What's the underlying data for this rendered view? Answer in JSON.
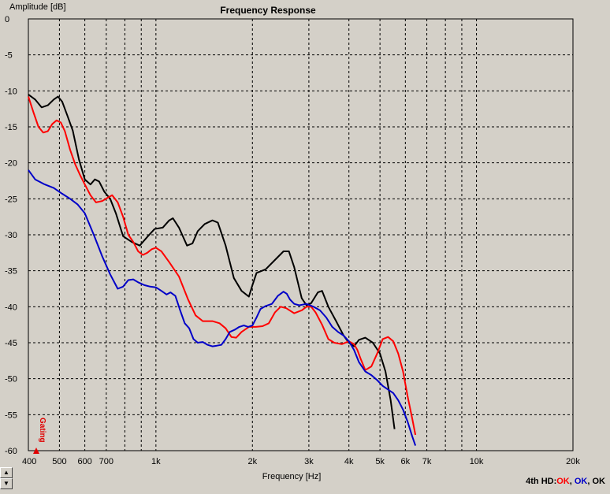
{
  "chart_data": {
    "type": "line",
    "title": "Frequency Response",
    "xlabel": "Frequency [Hz]",
    "ylabel": "Amplitude [dB]",
    "xscale": "log",
    "xlim": [
      400,
      20000
    ],
    "ylim": [
      -60,
      0
    ],
    "grid": true,
    "gating_label": "Gating",
    "xticks": [
      {
        "value": 400,
        "label": "400"
      },
      {
        "value": 500,
        "label": "500"
      },
      {
        "value": 600,
        "label": "600"
      },
      {
        "value": 700,
        "label": "700"
      },
      {
        "value": 1000,
        "label": "1k"
      },
      {
        "value": 2000,
        "label": "2k"
      },
      {
        "value": 3000,
        "label": "3k"
      },
      {
        "value": 4000,
        "label": "4k"
      },
      {
        "value": 5000,
        "label": "5k"
      },
      {
        "value": 6000,
        "label": "6k"
      },
      {
        "value": 7000,
        "label": "7k"
      },
      {
        "value": 10000,
        "label": "10k"
      },
      {
        "value": 20000,
        "label": "20k"
      }
    ],
    "xminor": [
      800,
      900,
      8000,
      9000
    ],
    "yticks": [
      0,
      -5,
      -10,
      -15,
      -20,
      -25,
      -30,
      -35,
      -40,
      -45,
      -50,
      -55,
      -60
    ],
    "series": [
      {
        "color": "#000000",
        "points": [
          [
            400,
            -10.5
          ],
          [
            420,
            -11.2
          ],
          [
            440,
            -12.3
          ],
          [
            460,
            -12.0
          ],
          [
            480,
            -11.2
          ],
          [
            495,
            -10.8
          ],
          [
            510,
            -11.5
          ],
          [
            530,
            -13.5
          ],
          [
            550,
            -15.5
          ],
          [
            575,
            -19.5
          ],
          [
            600,
            -22.3
          ],
          [
            625,
            -23.0
          ],
          [
            645,
            -22.3
          ],
          [
            665,
            -22.6
          ],
          [
            690,
            -24.0
          ],
          [
            720,
            -25.0
          ],
          [
            750,
            -27.0
          ],
          [
            790,
            -30.2
          ],
          [
            840,
            -31.0
          ],
          [
            890,
            -31.5
          ],
          [
            940,
            -30.3
          ],
          [
            990,
            -29.2
          ],
          [
            1050,
            -29.0
          ],
          [
            1100,
            -28.0
          ],
          [
            1130,
            -27.7
          ],
          [
            1180,
            -29.0
          ],
          [
            1250,
            -31.5
          ],
          [
            1300,
            -31.2
          ],
          [
            1350,
            -29.5
          ],
          [
            1420,
            -28.5
          ],
          [
            1500,
            -28.0
          ],
          [
            1560,
            -28.3
          ],
          [
            1650,
            -31.5
          ],
          [
            1750,
            -36.0
          ],
          [
            1850,
            -37.8
          ],
          [
            1950,
            -38.6
          ],
          [
            2000,
            -37.0
          ],
          [
            2060,
            -35.3
          ],
          [
            2200,
            -34.8
          ],
          [
            2350,
            -33.5
          ],
          [
            2500,
            -32.3
          ],
          [
            2600,
            -32.3
          ],
          [
            2700,
            -34.5
          ],
          [
            2850,
            -38.8
          ],
          [
            2950,
            -39.8
          ],
          [
            3050,
            -39.5
          ],
          [
            3200,
            -38.0
          ],
          [
            3300,
            -37.8
          ],
          [
            3450,
            -40.0
          ],
          [
            3650,
            -42.0
          ],
          [
            3850,
            -44.0
          ],
          [
            4000,
            -45.0
          ],
          [
            4150,
            -45.5
          ],
          [
            4300,
            -44.6
          ],
          [
            4500,
            -44.3
          ],
          [
            4750,
            -45.0
          ],
          [
            5000,
            -46.5
          ],
          [
            5200,
            -49.0
          ],
          [
            5400,
            -53.0
          ],
          [
            5550,
            -57.0
          ]
        ]
      },
      {
        "color": "#ff0000",
        "points": [
          [
            400,
            -10.8
          ],
          [
            415,
            -13.0
          ],
          [
            430,
            -15.0
          ],
          [
            445,
            -15.8
          ],
          [
            460,
            -15.6
          ],
          [
            475,
            -14.6
          ],
          [
            490,
            -14.1
          ],
          [
            505,
            -14.4
          ],
          [
            520,
            -15.6
          ],
          [
            540,
            -18.2
          ],
          [
            560,
            -20.2
          ],
          [
            580,
            -21.7
          ],
          [
            600,
            -23.0
          ],
          [
            625,
            -24.5
          ],
          [
            650,
            -25.5
          ],
          [
            680,
            -25.3
          ],
          [
            710,
            -24.8
          ],
          [
            730,
            -24.5
          ],
          [
            760,
            -25.5
          ],
          [
            790,
            -27.5
          ],
          [
            820,
            -30.0
          ],
          [
            850,
            -31.0
          ],
          [
            880,
            -32.3
          ],
          [
            910,
            -32.8
          ],
          [
            940,
            -32.5
          ],
          [
            970,
            -32.0
          ],
          [
            1000,
            -31.8
          ],
          [
            1040,
            -32.3
          ],
          [
            1100,
            -33.8
          ],
          [
            1180,
            -35.8
          ],
          [
            1260,
            -39.0
          ],
          [
            1330,
            -41.2
          ],
          [
            1400,
            -42.0
          ],
          [
            1500,
            -42.0
          ],
          [
            1580,
            -42.3
          ],
          [
            1650,
            -43.0
          ],
          [
            1720,
            -44.2
          ],
          [
            1780,
            -44.3
          ],
          [
            1850,
            -43.5
          ],
          [
            1950,
            -42.8
          ],
          [
            2050,
            -42.8
          ],
          [
            2150,
            -42.7
          ],
          [
            2250,
            -42.3
          ],
          [
            2350,
            -40.8
          ],
          [
            2450,
            -40.0
          ],
          [
            2550,
            -40.2
          ],
          [
            2700,
            -40.9
          ],
          [
            2850,
            -40.5
          ],
          [
            2950,
            -40.0
          ],
          [
            3050,
            -40.0
          ],
          [
            3150,
            -40.8
          ],
          [
            3300,
            -42.5
          ],
          [
            3450,
            -44.5
          ],
          [
            3600,
            -45.0
          ],
          [
            3800,
            -45.2
          ],
          [
            4000,
            -44.8
          ],
          [
            4150,
            -45.2
          ],
          [
            4250,
            -46.0
          ],
          [
            4350,
            -47.2
          ],
          [
            4500,
            -48.8
          ],
          [
            4700,
            -48.3
          ],
          [
            4900,
            -46.5
          ],
          [
            5100,
            -44.5
          ],
          [
            5300,
            -44.2
          ],
          [
            5500,
            -44.8
          ],
          [
            5700,
            -46.5
          ],
          [
            5900,
            -49.0
          ],
          [
            6100,
            -52.5
          ],
          [
            6300,
            -55.5
          ],
          [
            6450,
            -57.8
          ]
        ]
      },
      {
        "color": "#0000c8",
        "points": [
          [
            400,
            -21.0
          ],
          [
            420,
            -22.3
          ],
          [
            450,
            -23.0
          ],
          [
            480,
            -23.5
          ],
          [
            510,
            -24.3
          ],
          [
            540,
            -25.0
          ],
          [
            570,
            -25.8
          ],
          [
            600,
            -27.0
          ],
          [
            640,
            -30.0
          ],
          [
            680,
            -33.0
          ],
          [
            720,
            -35.5
          ],
          [
            760,
            -37.5
          ],
          [
            790,
            -37.2
          ],
          [
            820,
            -36.3
          ],
          [
            850,
            -36.2
          ],
          [
            880,
            -36.6
          ],
          [
            920,
            -37.0
          ],
          [
            960,
            -37.2
          ],
          [
            1000,
            -37.3
          ],
          [
            1040,
            -37.8
          ],
          [
            1080,
            -38.3
          ],
          [
            1110,
            -38.0
          ],
          [
            1150,
            -38.5
          ],
          [
            1190,
            -40.5
          ],
          [
            1230,
            -42.3
          ],
          [
            1270,
            -43.0
          ],
          [
            1310,
            -44.5
          ],
          [
            1350,
            -45.0
          ],
          [
            1400,
            -44.9
          ],
          [
            1450,
            -45.3
          ],
          [
            1500,
            -45.5
          ],
          [
            1550,
            -45.4
          ],
          [
            1600,
            -45.3
          ],
          [
            1650,
            -44.5
          ],
          [
            1700,
            -43.5
          ],
          [
            1760,
            -43.2
          ],
          [
            1820,
            -42.8
          ],
          [
            1880,
            -42.6
          ],
          [
            1940,
            -42.8
          ],
          [
            2000,
            -42.6
          ],
          [
            2060,
            -41.5
          ],
          [
            2120,
            -40.3
          ],
          [
            2200,
            -39.9
          ],
          [
            2300,
            -39.6
          ],
          [
            2400,
            -38.5
          ],
          [
            2500,
            -37.9
          ],
          [
            2560,
            -38.2
          ],
          [
            2620,
            -39.0
          ],
          [
            2700,
            -39.6
          ],
          [
            2800,
            -39.8
          ],
          [
            2950,
            -39.6
          ],
          [
            3100,
            -40.0
          ],
          [
            3250,
            -40.5
          ],
          [
            3400,
            -41.5
          ],
          [
            3550,
            -42.8
          ],
          [
            3700,
            -43.5
          ],
          [
            3850,
            -44.0
          ],
          [
            4000,
            -44.8
          ],
          [
            4150,
            -46.0
          ],
          [
            4300,
            -47.7
          ],
          [
            4500,
            -49.0
          ],
          [
            4700,
            -49.5
          ],
          [
            4900,
            -50.2
          ],
          [
            5100,
            -51.0
          ],
          [
            5300,
            -51.5
          ],
          [
            5500,
            -52.0
          ],
          [
            5700,
            -53.0
          ],
          [
            5900,
            -54.3
          ],
          [
            6100,
            -56.0
          ],
          [
            6300,
            -58.0
          ],
          [
            6450,
            -59.3
          ]
        ]
      }
    ]
  },
  "controls": {
    "up_glyph": "▲",
    "down_glyph": "▼"
  },
  "status": {
    "prefix": "4th HD:",
    "item1": "OK",
    "sep1": ", ",
    "item2": "OK",
    "sep2": ", ",
    "item3": "OK",
    "colors": [
      "#ff0000",
      "#0000c8",
      "#000000"
    ]
  }
}
